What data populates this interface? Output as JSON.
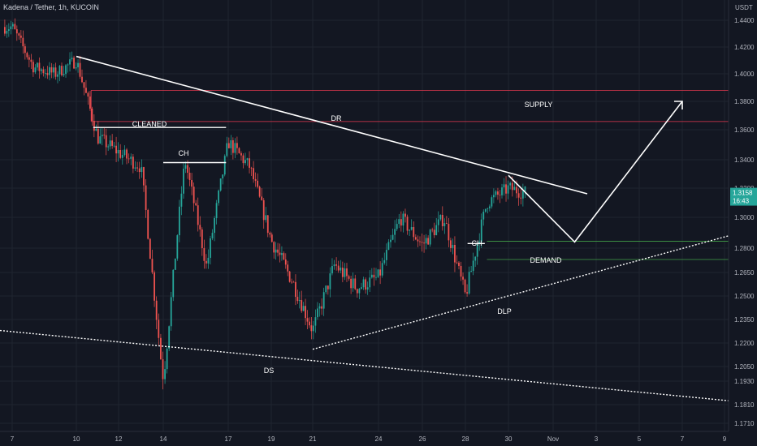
{
  "title": "Kadena / Tether, 1h, KUCOIN",
  "currency": "USDT",
  "price_badge": {
    "price": "1.3158",
    "countdown": "16:43",
    "color": "#26a69a"
  },
  "colors": {
    "background": "#131722",
    "grid": "#1f2430",
    "up": "#26a69a",
    "down": "#ef5350",
    "supply": "#e53950",
    "demand": "#43a047",
    "annotation": "#ffffff"
  },
  "labels": {
    "cleaned": "CLEANED",
    "ch1": "CH",
    "ch2": "CH",
    "dr": "DR",
    "supply": "SUPPLY",
    "demand": "DEMAND",
    "dlp": "DLP",
    "ds": "DS"
  },
  "chart_data": {
    "type": "candlestick",
    "title": "Kadena / Tether, 1h, KUCOIN",
    "x_ticks": [
      "7",
      "10",
      "12",
      "14",
      "17",
      "19",
      "21",
      "24",
      "26",
      "28",
      "30",
      "Nov",
      "3",
      "5",
      "7",
      "9"
    ],
    "y_ticks": [
      "1.4400",
      "1.4200",
      "1.4000",
      "1.3800",
      "1.3600",
      "1.3400",
      "1.3200",
      "1.3000",
      "1.2800",
      "1.2650",
      "1.2500",
      "1.2350",
      "1.2200",
      "1.2050",
      "1.1930",
      "1.1810",
      "1.1710"
    ],
    "price_path": [
      [
        "7",
        1.435
      ],
      [
        "8",
        1.405
      ],
      [
        "9",
        1.4
      ],
      [
        "10",
        1.41
      ],
      [
        "11",
        1.355
      ],
      [
        "12",
        1.345
      ],
      [
        "13",
        1.335
      ],
      [
        "14",
        1.195
      ],
      [
        "15",
        1.34
      ],
      [
        "16",
        1.268
      ],
      [
        "17",
        1.352
      ],
      [
        "18",
        1.335
      ],
      [
        "19",
        1.285
      ],
      [
        "20",
        1.26
      ],
      [
        "21",
        1.228
      ],
      [
        "22",
        1.27
      ],
      [
        "23",
        1.255
      ],
      [
        "24",
        1.262
      ],
      [
        "25",
        1.3
      ],
      [
        "26",
        1.282
      ],
      [
        "27",
        1.3
      ],
      [
        "28",
        1.25
      ],
      [
        "29",
        1.31
      ],
      [
        "30",
        1.32
      ],
      [
        "31",
        1.316
      ]
    ],
    "last_price": 1.3158,
    "zones": [
      {
        "name": "SUPPLY",
        "low": 1.3658,
        "high": 1.388
      },
      {
        "name": "DEMAND",
        "low": 1.273,
        "high": 1.2845
      }
    ],
    "trendlines": [
      {
        "name": "DR",
        "from": [
          "10",
          1.413
        ],
        "to": [
          "Nov",
          1.3166
        ]
      },
      {
        "name": "DLP",
        "from": [
          "21",
          1.216
        ],
        "to": [
          "9",
          1.288
        ]
      },
      {
        "name": "DS",
        "from": [
          "7",
          1.228
        ],
        "to": [
          "9",
          1.183
        ]
      }
    ],
    "levels": [
      {
        "name": "CLEANED",
        "price": 1.3616
      },
      {
        "name": "CH",
        "price": 1.338
      },
      {
        "name": "CH",
        "price": 1.283
      }
    ],
    "projection": [
      [
        "30",
        1.329
      ],
      [
        "2",
        1.284
      ],
      [
        "7",
        1.38
      ]
    ]
  }
}
